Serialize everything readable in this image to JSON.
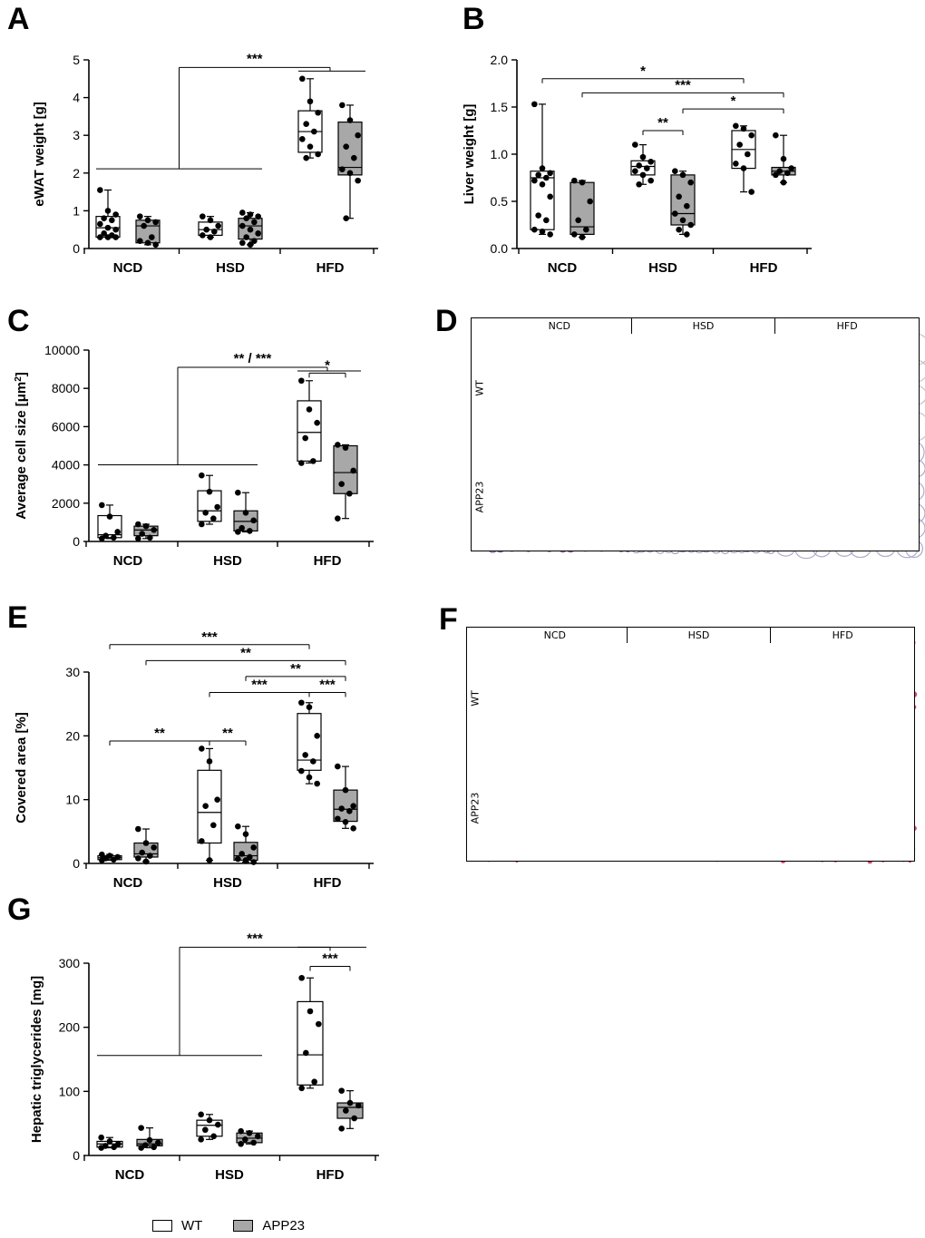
{
  "panel_labels": [
    "A",
    "B",
    "C",
    "D",
    "E",
    "F",
    "G"
  ],
  "legend": {
    "wt": "WT",
    "app": "APP23",
    "wt_color": "#ffffff",
    "app_color": "#a8a8a8"
  },
  "colors": {
    "tissue_bg": "#eef0f4",
    "tissue_line": "#b8b6cf",
    "app_ncd": "#8a6aa2",
    "liver_bg": "#f1c9d0",
    "lipid": "#d7264f"
  },
  "histology": {
    "D": {
      "columns": [
        "NCD",
        "HSD",
        "HFD"
      ],
      "rows": [
        "WT",
        "APP23"
      ]
    },
    "F": {
      "columns": [
        "NCD",
        "HSD",
        "HFD"
      ],
      "rows": [
        "WT",
        "APP23"
      ]
    }
  },
  "chart_data": [
    {
      "id": "A",
      "type": "box",
      "ylabel": "eWAT weight [g]",
      "ylim": [
        0,
        5
      ],
      "yticks": [
        0,
        1,
        2,
        3,
        4,
        5
      ],
      "categories": [
        "NCD",
        "HSD",
        "HFD"
      ],
      "series": [
        {
          "name": "WT",
          "boxes": [
            {
              "min": 0.3,
              "q1": 0.3,
              "median": 0.55,
              "q3": 0.85,
              "max": 1.55,
              "points": [
                1.55,
                1.0,
                0.9,
                0.8,
                0.75,
                0.65,
                0.55,
                0.5,
                0.4,
                0.35,
                0.3,
                0.3,
                0.3
              ]
            },
            {
              "min": 0.3,
              "q1": 0.35,
              "median": 0.5,
              "q3": 0.7,
              "max": 0.85,
              "points": [
                0.85,
                0.75,
                0.6,
                0.5,
                0.45,
                0.35,
                0.3
              ]
            },
            {
              "min": 2.4,
              "q1": 2.55,
              "median": 3.1,
              "q3": 3.65,
              "max": 4.5,
              "points": [
                4.5,
                3.9,
                3.6,
                3.3,
                3.1,
                2.9,
                2.7,
                2.5,
                2.4
              ]
            }
          ]
        },
        {
          "name": "APP23",
          "boxes": [
            {
              "min": 0.1,
              "q1": 0.15,
              "median": 0.6,
              "q3": 0.75,
              "max": 0.85,
              "points": [
                0.85,
                0.75,
                0.7,
                0.6,
                0.3,
                0.2,
                0.15,
                0.1
              ]
            },
            {
              "min": 0.1,
              "q1": 0.25,
              "median": 0.6,
              "q3": 0.8,
              "max": 0.95,
              "points": [
                0.95,
                0.9,
                0.85,
                0.8,
                0.7,
                0.6,
                0.5,
                0.4,
                0.3,
                0.2,
                0.15,
                0.1
              ]
            },
            {
              "min": 0.8,
              "q1": 1.95,
              "median": 2.15,
              "q3": 3.35,
              "max": 3.8,
              "points": [
                3.8,
                3.4,
                3.0,
                2.7,
                2.4,
                2.1,
                2.0,
                1.8,
                0.8
              ]
            }
          ]
        }
      ],
      "annotations": [
        {
          "type": "star",
          "text": "***",
          "x1": "NCD:mid",
          "x2": "HFD:mid",
          "y": 4.8,
          "from_group": true
        }
      ]
    },
    {
      "id": "B",
      "type": "box",
      "ylabel": "Liver weight [g]",
      "ylim": [
        0,
        2
      ],
      "yticks": [
        "0.0",
        "0.5",
        "1.0",
        "1.5",
        "2.0"
      ],
      "categories": [
        "NCD",
        "HSD",
        "HFD"
      ],
      "series": [
        {
          "name": "WT",
          "boxes": [
            {
              "min": 0.15,
              "q1": 0.2,
              "median": 0.75,
              "q3": 0.82,
              "max": 1.53,
              "points": [
                1.53,
                0.85,
                0.8,
                0.78,
                0.75,
                0.72,
                0.68,
                0.55,
                0.35,
                0.3,
                0.2,
                0.18,
                0.15
              ]
            },
            {
              "min": 0.68,
              "q1": 0.78,
              "median": 0.87,
              "q3": 0.93,
              "max": 1.1,
              "points": [
                1.1,
                0.97,
                0.92,
                0.88,
                0.85,
                0.82,
                0.78,
                0.72,
                0.68
              ]
            },
            {
              "min": 0.6,
              "q1": 0.85,
              "median": 1.05,
              "q3": 1.25,
              "max": 1.3,
              "points": [
                1.3,
                1.27,
                1.2,
                1.1,
                1.0,
                0.9,
                0.85,
                0.6
              ]
            }
          ]
        },
        {
          "name": "APP23",
          "boxes": [
            {
              "min": 0.12,
              "q1": 0.15,
              "median": 0.23,
              "q3": 0.7,
              "max": 0.72,
              "points": [
                0.72,
                0.7,
                0.5,
                0.3,
                0.2,
                0.15,
                0.12
              ]
            },
            {
              "min": 0.15,
              "q1": 0.25,
              "median": 0.37,
              "q3": 0.78,
              "max": 0.82,
              "points": [
                0.82,
                0.78,
                0.7,
                0.55,
                0.45,
                0.37,
                0.3,
                0.25,
                0.2,
                0.15
              ]
            },
            {
              "min": 0.7,
              "q1": 0.78,
              "median": 0.82,
              "q3": 0.86,
              "max": 1.2,
              "points": [
                1.2,
                0.95,
                0.85,
                0.82,
                0.8,
                0.78,
                0.7
              ]
            }
          ]
        }
      ],
      "annotations": [
        {
          "type": "star",
          "text": "*",
          "x1": "NCD:WT",
          "x2": "HFD:WT",
          "y": 1.8
        },
        {
          "type": "star",
          "text": "***",
          "x1": "NCD:APP23",
          "x2": "HFD:APP23",
          "y": 1.65
        },
        {
          "type": "star",
          "text": "**",
          "x1": "HSD:WT",
          "x2": "HSD:APP23",
          "y": 1.25
        },
        {
          "type": "star",
          "text": "*",
          "x1": "HSD:APP23",
          "x2": "HFD:APP23",
          "y": 1.48
        }
      ]
    },
    {
      "id": "C",
      "type": "box",
      "ylabel": "Average cell size [μm",
      "ylabel_sup": "2",
      "ylabel_end": "]",
      "ylim": [
        0,
        10000
      ],
      "yticks": [
        0,
        2000,
        4000,
        6000,
        8000,
        10000
      ],
      "categories": [
        "NCD",
        "HSD",
        "HFD"
      ],
      "series": [
        {
          "name": "WT",
          "boxes": [
            {
              "min": 150,
              "q1": 200,
              "median": 350,
              "q3": 1350,
              "max": 1900,
              "points": [
                1900,
                1300,
                500,
                300,
                200,
                150
              ]
            },
            {
              "min": 900,
              "q1": 1050,
              "median": 1600,
              "q3": 2650,
              "max": 3450,
              "points": [
                3450,
                2600,
                1800,
                1500,
                1200,
                900
              ]
            },
            {
              "min": 4100,
              "q1": 4200,
              "median": 5700,
              "q3": 7350,
              "max": 8400,
              "points": [
                8400,
                6900,
                6200,
                5400,
                4200,
                4100
              ]
            }
          ]
        },
        {
          "name": "APP23",
          "boxes": [
            {
              "min": 150,
              "q1": 300,
              "median": 600,
              "q3": 800,
              "max": 900,
              "points": [
                900,
                800,
                600,
                400,
                200,
                150
              ]
            },
            {
              "min": 500,
              "q1": 550,
              "median": 1050,
              "q3": 1600,
              "max": 2550,
              "points": [
                2550,
                1500,
                1100,
                700,
                550,
                500
              ]
            },
            {
              "min": 1200,
              "q1": 2500,
              "median": 3600,
              "q3": 5000,
              "max": 5050,
              "points": [
                5050,
                4900,
                3700,
                3000,
                2500,
                1200
              ]
            }
          ]
        }
      ],
      "annotations": [
        {
          "type": "star",
          "text": "** / ***",
          "x1": "NCD:mid",
          "x2": "HFD:mid",
          "y": 9100,
          "from_group": true
        },
        {
          "type": "star",
          "text": "*",
          "x1": "HFD:WT",
          "x2": "HFD:APP23",
          "y": 8800
        }
      ]
    },
    {
      "id": "E",
      "type": "box",
      "ylabel": "Covered area [%]",
      "ylim": [
        0,
        30
      ],
      "yticks": [
        0,
        10,
        20,
        30
      ],
      "categories": [
        "NCD",
        "HSD",
        "HFD"
      ],
      "series": [
        {
          "name": "WT",
          "boxes": [
            {
              "min": 0.5,
              "q1": 0.6,
              "median": 0.9,
              "q3": 1.2,
              "max": 1.4,
              "points": [
                1.4,
                1.2,
                1.0,
                0.8,
                0.6,
                0.5
              ]
            },
            {
              "min": 0.5,
              "q1": 3.2,
              "median": 8,
              "q3": 14.6,
              "max": 18,
              "points": [
                18,
                16,
                10,
                9,
                6,
                3.5,
                0.5
              ]
            },
            {
              "min": 12.5,
              "q1": 14.6,
              "median": 16.2,
              "q3": 23.5,
              "max": 25.2,
              "points": [
                25.2,
                24.5,
                20,
                17,
                16,
                14.5,
                13.5,
                12.5
              ]
            }
          ]
        },
        {
          "name": "APP23",
          "boxes": [
            {
              "min": 0.3,
              "q1": 1,
              "median": 1.5,
              "q3": 3.2,
              "max": 5.4,
              "points": [
                5.4,
                3.2,
                2.5,
                1.7,
                1.2,
                0.8,
                0.3
              ]
            },
            {
              "min": 0.2,
              "q1": 0.5,
              "median": 1.2,
              "q3": 3.3,
              "max": 5.8,
              "points": [
                5.8,
                4.6,
                2.5,
                1.5,
                1.0,
                0.7,
                0.5,
                0.2
              ]
            },
            {
              "min": 5.5,
              "q1": 6.6,
              "median": 8.5,
              "q3": 11.5,
              "max": 15.2,
              "points": [
                15.2,
                11.5,
                9,
                8.6,
                8.2,
                7,
                6.5,
                5.5
              ]
            }
          ]
        }
      ],
      "annotations": [
        {
          "type": "star",
          "text": "***",
          "x1": "NCD:WT",
          "x2": "HFD:WT",
          "y": 34.3
        },
        {
          "type": "star",
          "text": "**",
          "x1": "NCD:APP23",
          "x2": "HFD:APP23",
          "y": 31.8
        },
        {
          "type": "star",
          "text": "**",
          "x1": "HSD:APP23",
          "x2": "HFD:APP23",
          "y": 29.3
        },
        {
          "type": "star",
          "text": "***",
          "x1": "HSD:WT",
          "x2": "HFD:WT",
          "y": 26.8
        },
        {
          "type": "star",
          "text": "***",
          "x1": "HFD:WT",
          "x2": "HFD:APP23",
          "y": 26.8
        },
        {
          "type": "star",
          "text": "**",
          "x1": "NCD:WT",
          "x2": "HSD:WT",
          "y": 19.2
        },
        {
          "type": "star",
          "text": "**",
          "x1": "HSD:WT",
          "x2": "HSD:APP23",
          "y": 19.2
        }
      ]
    },
    {
      "id": "G",
      "type": "box",
      "ylabel": "Hepatic triglycerides [mg]",
      "ylim": [
        0,
        300
      ],
      "yticks": [
        0,
        100,
        200,
        300
      ],
      "categories": [
        "NCD",
        "HSD",
        "HFD"
      ],
      "series": [
        {
          "name": "WT",
          "boxes": [
            {
              "min": 12,
              "q1": 13,
              "median": 18,
              "q3": 22,
              "max": 28,
              "points": [
                28,
                22,
                18,
                15,
                13,
                12
              ]
            },
            {
              "min": 25,
              "q1": 30,
              "median": 47,
              "q3": 55,
              "max": 64,
              "points": [
                64,
                55,
                48,
                40,
                30,
                25
              ]
            },
            {
              "min": 105,
              "q1": 110,
              "median": 157,
              "q3": 240,
              "max": 277,
              "points": [
                277,
                225,
                205,
                160,
                115,
                105
              ]
            }
          ]
        },
        {
          "name": "APP23",
          "boxes": [
            {
              "min": 12,
              "q1": 15,
              "median": 18,
              "q3": 25,
              "max": 43,
              "points": [
                43,
                24,
                20,
                16,
                13,
                12
              ]
            },
            {
              "min": 18,
              "q1": 20,
              "median": 27,
              "q3": 35,
              "max": 38,
              "points": [
                38,
                35,
                30,
                25,
                20,
                18
              ]
            },
            {
              "min": 42,
              "q1": 58,
              "median": 75,
              "q3": 82,
              "max": 101,
              "points": [
                101,
                82,
                78,
                70,
                58,
                42
              ]
            }
          ]
        }
      ],
      "annotations": [
        {
          "type": "star",
          "text": "***",
          "x1": "NCD:mid",
          "x2": "HFD:WT",
          "y": 325,
          "from_group": true
        },
        {
          "type": "star",
          "text": "***",
          "x1": "HFD:WT",
          "x2": "HFD:APP23",
          "y": 295
        }
      ]
    }
  ]
}
